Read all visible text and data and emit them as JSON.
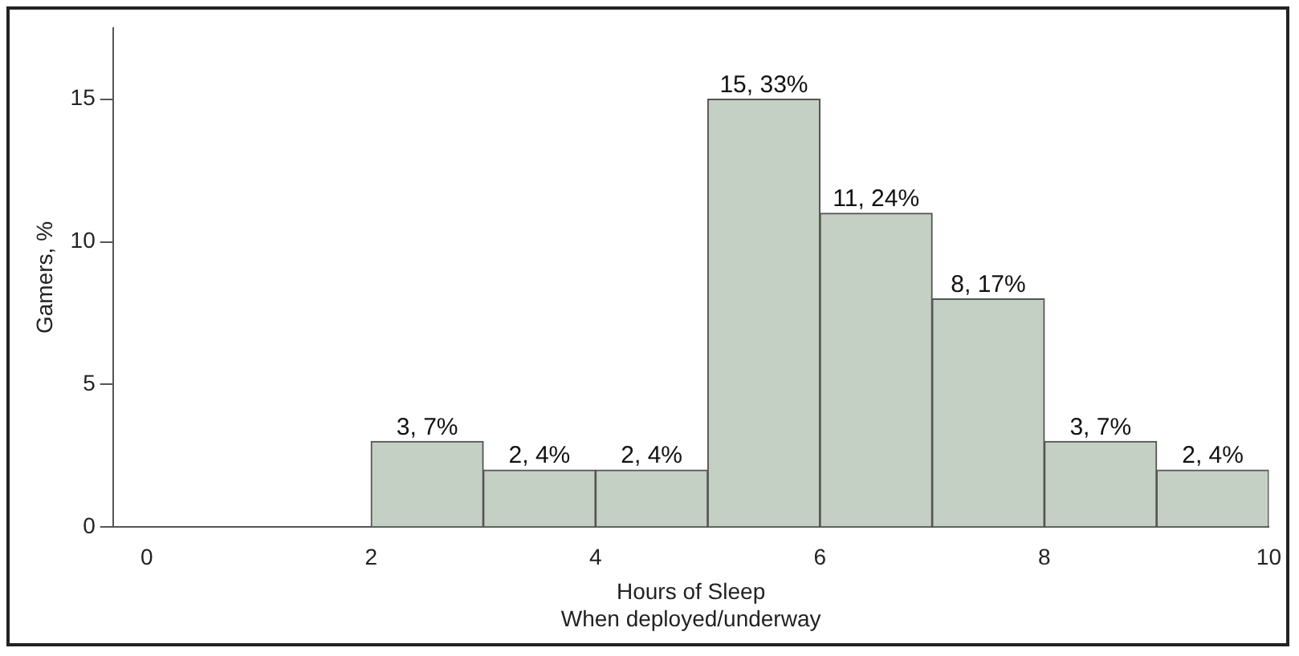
{
  "chart_data": {
    "type": "histogram",
    "xlabel": "Hours of Sleep\nWhen deployed/underway",
    "ylabel": "Gamers, %",
    "bins": [
      2,
      3,
      4,
      5,
      6,
      7,
      8,
      9,
      10
    ],
    "values": [
      3,
      2,
      2,
      15,
      11,
      8,
      3,
      2
    ],
    "value_labels": [
      "3, 7%",
      "2, 4%",
      "2, 4%",
      "15, 33%",
      "11, 24%",
      "8, 17%",
      "3, 7%",
      "2, 4%"
    ],
    "color": "#c5d0c5",
    "xlim": [
      -0.3,
      10
    ],
    "xticks": [
      0,
      2,
      4,
      6,
      8,
      10
    ],
    "ylim": [
      0,
      17.5
    ],
    "yticks": [
      0,
      5,
      10,
      15
    ],
    "grid": false,
    "legend": false
  }
}
